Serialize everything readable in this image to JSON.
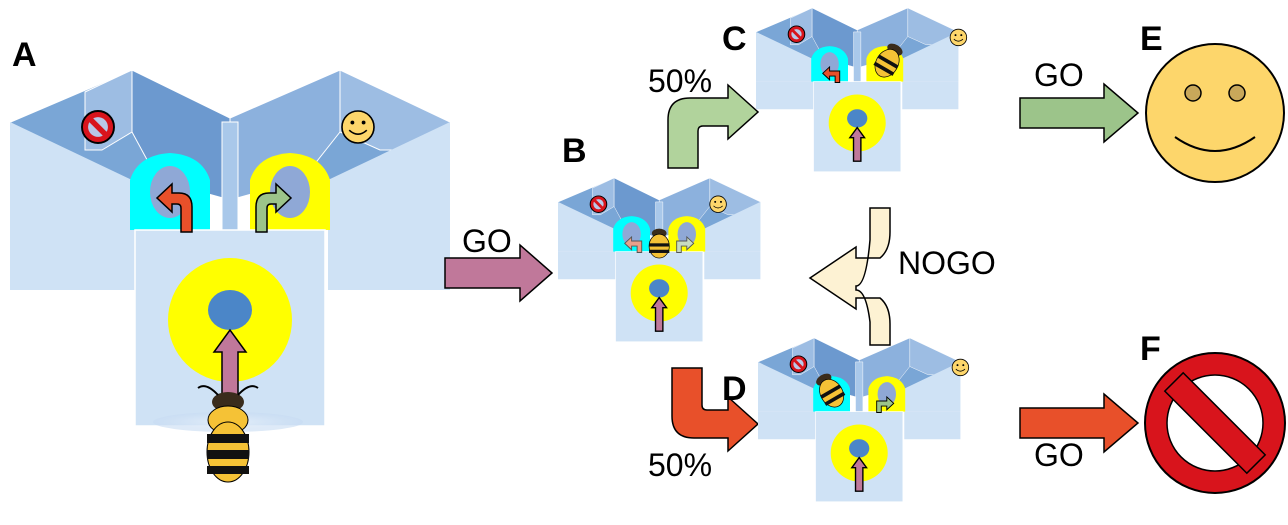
{
  "panels": {
    "a": "A",
    "b": "B",
    "c": "C",
    "d": "D",
    "e": "E",
    "f": "F"
  },
  "arrows": {
    "go_a_b": "GO",
    "pct_up": "50%",
    "pct_down": "50%",
    "go_c_e": "GO",
    "go_d_f": "GO",
    "nogo": "NOGO"
  },
  "icons": {
    "left_compartment": "no-entry-icon",
    "right_compartment": "smiley-icon"
  },
  "colors": {
    "maze_front": "#cfe2f5",
    "maze_wall": "#7aa6d6",
    "cue_cyan": "#00ffff",
    "cue_yellow": "#ffff00",
    "arrow_go": "#c0789a",
    "arrow_left": "#e8502a",
    "arrow_right": "#9cc48a",
    "arrow_nogo": "#fdf2d3",
    "smiley": "#fdd66b",
    "stop_red": "#d8141c"
  }
}
